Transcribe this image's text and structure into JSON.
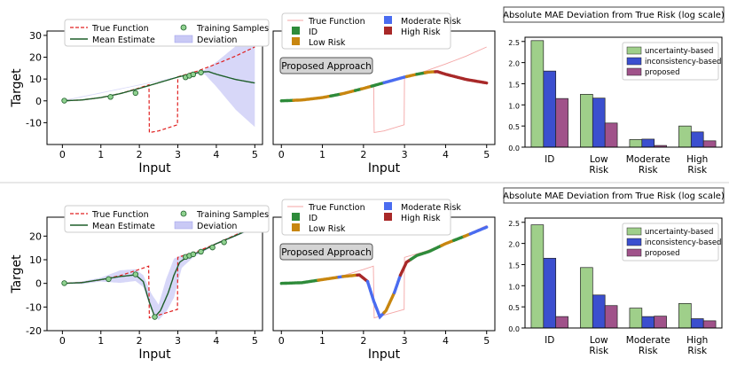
{
  "chart_data": [
    {
      "type": "line",
      "row": 1,
      "panel": "left",
      "xlabel": "Input",
      "ylabel": "Target",
      "xlim": [
        -0.4,
        5.2
      ],
      "ylim": [
        -20,
        32
      ],
      "xticks": [
        0,
        1,
        2,
        3,
        4,
        5
      ],
      "yticks": [
        -10,
        0,
        10,
        20,
        30
      ],
      "legend": {
        "placement": "top",
        "entries": [
          {
            "label": "True Function",
            "style": "dashed-line",
            "color": "#e02020"
          },
          {
            "label": "Training Samples",
            "style": "marker",
            "color": "#8fd18f"
          },
          {
            "label": "Mean Estimate",
            "style": "line",
            "color": "#1e5e2a"
          },
          {
            "label": "Deviation",
            "style": "patch",
            "color": "#c9c9f5"
          }
        ]
      },
      "series": [
        {
          "name": "True Function",
          "x": [
            0,
            0.5,
            1,
            1.5,
            2,
            2.25,
            2.26,
            2.5,
            2.99,
            3.0,
            3.5,
            4.0,
            4.5,
            5.0
          ],
          "y": [
            0,
            0.4,
            1.5,
            3.3,
            5.9,
            7.4,
            -14.5,
            -13.8,
            -11.0,
            11.0,
            13.6,
            16.9,
            20.5,
            24.7
          ]
        },
        {
          "name": "Mean Estimate",
          "x": [
            0,
            0.5,
            1,
            1.5,
            2,
            2.5,
            3.0,
            3.3,
            3.6,
            3.8,
            4.0,
            4.5,
            5.0
          ],
          "y": [
            0,
            0.4,
            1.5,
            3.3,
            5.7,
            8.3,
            10.9,
            12.2,
            13.2,
            13.4,
            12.2,
            9.8,
            8.2
          ]
        },
        {
          "name": "Deviation upper",
          "x": [
            0,
            3.4,
            3.7,
            4.0,
            4.5,
            5.0
          ],
          "y": [
            0.2,
            12.5,
            14.2,
            17.8,
            25.0,
            30.0
          ]
        },
        {
          "name": "Deviation lower",
          "x": [
            0,
            3.4,
            3.7,
            4.0,
            4.5,
            5.0
          ],
          "y": [
            -0.2,
            12.3,
            12.2,
            6.5,
            -4.0,
            -12.0
          ]
        },
        {
          "name": "Training Samples",
          "x": [
            0.05,
            1.25,
            1.9,
            3.2,
            3.3,
            3.4,
            3.6
          ],
          "y": [
            0.1,
            1.8,
            3.6,
            10.8,
            11.5,
            12.1,
            13.0
          ]
        }
      ]
    },
    {
      "type": "scatter",
      "row": 1,
      "panel": "middle",
      "xlabel": "Input",
      "ylabel": "",
      "annotation": "Proposed Approach",
      "xlim": [
        -0.2,
        5.2
      ],
      "ylim": [
        -20,
        32
      ],
      "xticks": [
        0,
        1,
        2,
        3,
        4,
        5
      ],
      "legend": {
        "placement": "top",
        "entries": [
          {
            "label": "True Function",
            "style": "thin-line",
            "color": "#f4a6a6"
          },
          {
            "label": "ID",
            "style": "square",
            "color": "#2e8b3a"
          },
          {
            "label": "Low Risk",
            "style": "square",
            "color": "#c8860f"
          },
          {
            "label": "Moderate Risk",
            "style": "square",
            "color": "#4a6cf0"
          },
          {
            "label": "High Risk",
            "style": "square",
            "color": "#a82828"
          }
        ]
      },
      "segments": [
        {
          "risk": "ID",
          "x_range": [
            0.0,
            0.3
          ]
        },
        {
          "risk": "Low Risk",
          "x_range": [
            0.3,
            1.2
          ]
        },
        {
          "risk": "ID",
          "x_range": [
            1.2,
            1.45
          ]
        },
        {
          "risk": "Low Risk",
          "x_range": [
            1.45,
            1.8
          ]
        },
        {
          "risk": "ID",
          "x_range": [
            1.8,
            1.95
          ]
        },
        {
          "risk": "Low Risk",
          "x_range": [
            1.95,
            2.2
          ]
        },
        {
          "risk": "ID",
          "x_range": [
            2.2,
            2.5
          ]
        },
        {
          "risk": "Moderate Risk",
          "x_range": [
            2.5,
            3.05
          ]
        },
        {
          "risk": "Low Risk",
          "x_range": [
            3.05,
            3.3
          ]
        },
        {
          "risk": "ID",
          "x_range": [
            3.3,
            3.5
          ]
        },
        {
          "risk": "Low Risk",
          "x_range": [
            3.5,
            3.75
          ]
        },
        {
          "risk": "High Risk",
          "x_range": [
            3.75,
            5.0
          ]
        }
      ]
    },
    {
      "type": "bar",
      "row": 1,
      "panel": "right",
      "title": "Absolute MAE Deviation from True Risk (log scale)",
      "categories": [
        "ID",
        "Low\nRisk",
        "Moderate\nRisk",
        "High\nRisk"
      ],
      "ylim": [
        0,
        2.6
      ],
      "yticks": [
        0.0,
        0.5,
        1.0,
        1.5,
        2.0,
        2.5
      ],
      "legend_placement": "top-right",
      "series": [
        {
          "name": "uncertainty-based",
          "color": "#9fcf8a",
          "values": [
            2.52,
            1.25,
            0.18,
            0.5
          ]
        },
        {
          "name": "inconsistency-based",
          "color": "#3b4fcf",
          "values": [
            1.8,
            1.16,
            0.19,
            0.36
          ]
        },
        {
          "name": "proposed",
          "color": "#a0528a",
          "values": [
            1.15,
            0.57,
            0.04,
            0.15
          ]
        }
      ]
    },
    {
      "type": "line",
      "row": 2,
      "panel": "left",
      "xlabel": "Input",
      "ylabel": "Target",
      "xlim": [
        -0.4,
        5.2
      ],
      "ylim": [
        -20,
        28
      ],
      "xticks": [
        0,
        1,
        2,
        3,
        4,
        5
      ],
      "yticks": [
        -20,
        -10,
        0,
        10,
        20
      ],
      "legend": {
        "placement": "top",
        "entries": [
          {
            "label": "True Function",
            "style": "dashed-line",
            "color": "#e02020"
          },
          {
            "label": "Training Samples",
            "style": "marker",
            "color": "#8fd18f"
          },
          {
            "label": "Mean Estimate",
            "style": "line",
            "color": "#1e5e2a"
          },
          {
            "label": "Deviation",
            "style": "patch",
            "color": "#c9c9f5"
          }
        ]
      },
      "series": [
        {
          "name": "True Function",
          "x": [
            0,
            0.5,
            1,
            1.5,
            2,
            2.24,
            2.26,
            2.99,
            3.0,
            3.5,
            4.0,
            4.5,
            5.0
          ],
          "y": [
            0,
            0.4,
            1.5,
            3.3,
            5.9,
            7.3,
            -14.6,
            -11.0,
            11.0,
            13.5,
            16.8,
            20.5,
            24.5
          ]
        },
        {
          "name": "Mean Estimate",
          "x": [
            0,
            0.5,
            1.0,
            1.5,
            1.9,
            2.1,
            2.25,
            2.4,
            2.55,
            2.75,
            2.9,
            3.05,
            3.3,
            3.6,
            4.0,
            4.5,
            5.0
          ],
          "y": [
            0,
            0.3,
            1.6,
            2.9,
            3.6,
            0.8,
            -7.5,
            -14.2,
            -11.5,
            -4.0,
            3.5,
            9.0,
            11.8,
            13.5,
            16.8,
            20.2,
            23.8
          ]
        },
        {
          "name": "Deviation upper",
          "x": [
            0,
            0.5,
            1.0,
            1.5,
            1.9,
            2.1,
            2.3,
            2.5,
            2.7,
            2.9,
            3.1,
            3.4,
            4.0,
            5.0
          ],
          "y": [
            0.2,
            0.8,
            2.4,
            5.5,
            6.0,
            3.5,
            -4.0,
            -9.0,
            2.0,
            10.5,
            12.0,
            12.8,
            17.2,
            24.4
          ]
        },
        {
          "name": "Deviation lower",
          "x": [
            0,
            0.5,
            1.0,
            1.5,
            1.9,
            2.1,
            2.3,
            2.5,
            2.7,
            2.9,
            3.1,
            3.4,
            4.0,
            5.0
          ],
          "y": [
            -0.2,
            -0.3,
            0.8,
            0.2,
            1.0,
            -1.5,
            -11.0,
            -15.5,
            -12.0,
            -6.0,
            6.5,
            11.0,
            16.4,
            23.2
          ]
        },
        {
          "name": "Training Samples",
          "x": [
            0.05,
            1.2,
            1.9,
            2.4,
            3.2,
            3.3,
            3.4,
            3.6,
            3.9,
            4.2
          ],
          "y": [
            0.1,
            1.8,
            3.8,
            -14.2,
            11.2,
            11.7,
            12.3,
            13.4,
            15.2,
            17.4
          ]
        }
      ]
    },
    {
      "type": "scatter",
      "row": 2,
      "panel": "middle",
      "xlabel": "Input",
      "ylabel": "",
      "annotation": "Proposed Approach",
      "xlim": [
        -0.2,
        5.2
      ],
      "ylim": [
        -20,
        28
      ],
      "xticks": [
        0,
        1,
        2,
        3,
        4,
        5
      ],
      "legend": {
        "placement": "top",
        "entries": [
          {
            "label": "True Function",
            "style": "thin-line",
            "color": "#f4a6a6"
          },
          {
            "label": "ID",
            "style": "square",
            "color": "#2e8b3a"
          },
          {
            "label": "Low Risk",
            "style": "square",
            "color": "#c8860f"
          },
          {
            "label": "Moderate Risk",
            "style": "square",
            "color": "#4a6cf0"
          },
          {
            "label": "High Risk",
            "style": "square",
            "color": "#a82828"
          }
        ]
      },
      "segments": [
        {
          "risk": "ID",
          "x_range": [
            0.0,
            0.9
          ]
        },
        {
          "risk": "Low Risk",
          "x_range": [
            0.9,
            1.4
          ]
        },
        {
          "risk": "Moderate Risk",
          "x_range": [
            1.4,
            1.5
          ]
        },
        {
          "risk": "Low Risk",
          "x_range": [
            1.5,
            1.85
          ]
        },
        {
          "risk": "High Risk",
          "x_range": [
            1.85,
            2.1
          ]
        },
        {
          "risk": "Moderate Risk",
          "x_range": [
            2.1,
            2.5
          ]
        },
        {
          "risk": "Low Risk",
          "x_range": [
            2.5,
            2.75
          ]
        },
        {
          "risk": "Moderate Risk",
          "x_range": [
            2.75,
            2.9
          ]
        },
        {
          "risk": "High Risk",
          "x_range": [
            2.9,
            3.15
          ]
        },
        {
          "risk": "ID",
          "x_range": [
            3.15,
            3.9
          ]
        },
        {
          "risk": "Low Risk",
          "x_range": [
            3.9,
            4.2
          ]
        },
        {
          "risk": "ID",
          "x_range": [
            4.2,
            4.45
          ]
        },
        {
          "risk": "Low Risk",
          "x_range": [
            4.45,
            4.6
          ]
        },
        {
          "risk": "Moderate Risk",
          "x_range": [
            4.6,
            5.0
          ]
        }
      ]
    },
    {
      "type": "bar",
      "row": 2,
      "panel": "right",
      "title": "Absolute MAE Deviation from True Risk (log scale)",
      "categories": [
        "ID",
        "Low\nRisk",
        "Moderate\nRisk",
        "High\nRisk"
      ],
      "ylim": [
        0,
        2.6
      ],
      "yticks": [
        0.0,
        0.5,
        1.0,
        1.5,
        2.0,
        2.5
      ],
      "legend_placement": "top-right",
      "series": [
        {
          "name": "uncertainty-based",
          "color": "#9fcf8a",
          "values": [
            2.44,
            1.43,
            0.47,
            0.58
          ]
        },
        {
          "name": "inconsistency-based",
          "color": "#3b4fcf",
          "values": [
            1.65,
            0.78,
            0.27,
            0.22
          ]
        },
        {
          "name": "proposed",
          "color": "#a0528a",
          "values": [
            0.27,
            0.53,
            0.28,
            0.17
          ]
        }
      ]
    }
  ]
}
